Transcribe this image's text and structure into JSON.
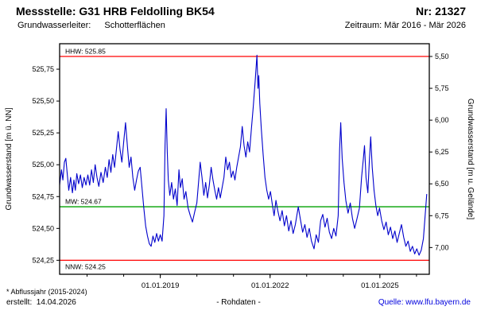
{
  "header": {
    "title": "Messstelle: G31 HRB Feldolling BK54",
    "number": "Nr: 21327",
    "aquifer_label": "Grundwasserleiter:",
    "aquifer_value": "Schotterflächen",
    "period": "Zeitraum: Mär 2016 - Mär 2026"
  },
  "footer": {
    "footnote": "* Abflussjahr (2015-2024)",
    "created": "erstellt:  14.04.2026",
    "center_label": "- Rohdaten -",
    "source_label": "Quelle: ",
    "source_link": "www.lfu.bayern.de"
  },
  "chart_data": {
    "type": "line",
    "ylabel_left": "Grundwasserstand [m ü. NN]",
    "ylabel_right": "Grundwasserstand [m u. Gelände]",
    "xlim": [
      2016.25,
      2026.35
    ],
    "ylim_left": [
      524.14,
      525.95
    ],
    "grid": false,
    "legend": "none",
    "yticks_left": [
      524.25,
      524.5,
      524.75,
      525.0,
      525.25,
      525.5,
      525.75
    ],
    "ytick_labels_left": [
      "524,25",
      "524,50",
      "524,75",
      "525,00",
      "525,25",
      "525,50",
      "525,75"
    ],
    "yticks_right": [
      {
        "label": "5,50",
        "level": 525.85
      },
      {
        "label": "5,75",
        "level": 525.6
      },
      {
        "label": "6,00",
        "level": 525.35
      },
      {
        "label": "6,25",
        "level": 525.1
      },
      {
        "label": "6,50",
        "level": 524.85
      },
      {
        "label": "6,75",
        "level": 524.6
      },
      {
        "label": "7,00",
        "level": 524.35
      }
    ],
    "xticks": [
      2019,
      2022,
      2025
    ],
    "xtick_labels": [
      "01.01.2019",
      "01.01.2022",
      "01.01.2025"
    ],
    "xticks_minor": [
      2017,
      2018,
      2019,
      2020,
      2021,
      2022,
      2023,
      2024,
      2025,
      2026
    ],
    "reference_lines": [
      {
        "name": "hhw",
        "label": "HHW: 525.85",
        "value": 525.85,
        "color": "#ff0000",
        "label_pos": "above"
      },
      {
        "name": "mw",
        "label": "MW: 524.67",
        "value": 524.67,
        "color": "#00a000",
        "label_pos": "above"
      },
      {
        "name": "nnw",
        "label": "NNW: 524.25",
        "value": 524.25,
        "color": "#ff0000",
        "label_pos": "below"
      }
    ],
    "series": [
      {
        "name": "Rohdaten",
        "color": "#0000cc",
        "points": [
          [
            2016.25,
            524.84
          ],
          [
            2016.3,
            524.96
          ],
          [
            2016.34,
            524.88
          ],
          [
            2016.38,
            525.02
          ],
          [
            2016.42,
            525.05
          ],
          [
            2016.46,
            524.92
          ],
          [
            2016.5,
            524.8
          ],
          [
            2016.55,
            524.9
          ],
          [
            2016.6,
            524.78
          ],
          [
            2016.64,
            524.88
          ],
          [
            2016.68,
            524.8
          ],
          [
            2016.72,
            524.93
          ],
          [
            2016.77,
            524.85
          ],
          [
            2016.82,
            524.92
          ],
          [
            2016.87,
            524.82
          ],
          [
            2016.92,
            524.9
          ],
          [
            2016.97,
            524.84
          ],
          [
            2017.02,
            524.92
          ],
          [
            2017.07,
            524.84
          ],
          [
            2017.12,
            524.96
          ],
          [
            2017.17,
            524.86
          ],
          [
            2017.22,
            525.0
          ],
          [
            2017.27,
            524.9
          ],
          [
            2017.32,
            524.83
          ],
          [
            2017.38,
            524.94
          ],
          [
            2017.44,
            524.86
          ],
          [
            2017.5,
            524.98
          ],
          [
            2017.55,
            524.9
          ],
          [
            2017.6,
            525.04
          ],
          [
            2017.65,
            524.94
          ],
          [
            2017.7,
            525.08
          ],
          [
            2017.75,
            524.98
          ],
          [
            2017.8,
            525.12
          ],
          [
            2017.85,
            525.26
          ],
          [
            2017.9,
            525.12
          ],
          [
            2017.95,
            525.02
          ],
          [
            2018.0,
            525.18
          ],
          [
            2018.05,
            525.33
          ],
          [
            2018.1,
            525.15
          ],
          [
            2018.15,
            524.98
          ],
          [
            2018.2,
            525.06
          ],
          [
            2018.25,
            524.9
          ],
          [
            2018.3,
            524.8
          ],
          [
            2018.35,
            524.88
          ],
          [
            2018.4,
            524.95
          ],
          [
            2018.45,
            524.98
          ],
          [
            2018.5,
            524.82
          ],
          [
            2018.55,
            524.66
          ],
          [
            2018.6,
            524.52
          ],
          [
            2018.65,
            524.44
          ],
          [
            2018.7,
            524.38
          ],
          [
            2018.75,
            524.36
          ],
          [
            2018.8,
            524.44
          ],
          [
            2018.85,
            524.39
          ],
          [
            2018.9,
            524.46
          ],
          [
            2018.95,
            524.4
          ],
          [
            2019.0,
            524.45
          ],
          [
            2019.05,
            524.4
          ],
          [
            2019.1,
            524.6
          ],
          [
            2019.13,
            525.15
          ],
          [
            2019.16,
            525.44
          ],
          [
            2019.19,
            525.1
          ],
          [
            2019.22,
            524.88
          ],
          [
            2019.26,
            524.76
          ],
          [
            2019.31,
            524.86
          ],
          [
            2019.36,
            524.73
          ],
          [
            2019.41,
            524.81
          ],
          [
            2019.46,
            524.68
          ],
          [
            2019.51,
            524.96
          ],
          [
            2019.55,
            524.82
          ],
          [
            2019.6,
            524.89
          ],
          [
            2019.65,
            524.73
          ],
          [
            2019.7,
            524.79
          ],
          [
            2019.76,
            524.66
          ],
          [
            2019.82,
            524.6
          ],
          [
            2019.88,
            524.55
          ],
          [
            2019.94,
            524.63
          ],
          [
            2020.0,
            524.7
          ],
          [
            2020.05,
            524.88
          ],
          [
            2020.09,
            525.02
          ],
          [
            2020.14,
            524.9
          ],
          [
            2020.19,
            524.76
          ],
          [
            2020.24,
            524.86
          ],
          [
            2020.29,
            524.74
          ],
          [
            2020.34,
            524.84
          ],
          [
            2020.39,
            524.98
          ],
          [
            2020.44,
            524.88
          ],
          [
            2020.49,
            524.8
          ],
          [
            2020.54,
            524.73
          ],
          [
            2020.59,
            524.82
          ],
          [
            2020.64,
            524.74
          ],
          [
            2020.69,
            524.82
          ],
          [
            2020.74,
            524.9
          ],
          [
            2020.79,
            525.06
          ],
          [
            2020.84,
            524.96
          ],
          [
            2020.89,
            525.02
          ],
          [
            2020.94,
            524.9
          ],
          [
            2020.99,
            524.95
          ],
          [
            2021.04,
            524.88
          ],
          [
            2021.09,
            524.98
          ],
          [
            2021.14,
            525.06
          ],
          [
            2021.19,
            525.14
          ],
          [
            2021.24,
            525.3
          ],
          [
            2021.29,
            525.15
          ],
          [
            2021.34,
            525.06
          ],
          [
            2021.39,
            525.18
          ],
          [
            2021.44,
            525.1
          ],
          [
            2021.49,
            525.28
          ],
          [
            2021.54,
            525.45
          ],
          [
            2021.59,
            525.65
          ],
          [
            2021.64,
            525.86
          ],
          [
            2021.67,
            525.6
          ],
          [
            2021.69,
            525.7
          ],
          [
            2021.72,
            525.48
          ],
          [
            2021.76,
            525.28
          ],
          [
            2021.81,
            525.08
          ],
          [
            2021.86,
            524.9
          ],
          [
            2021.91,
            524.8
          ],
          [
            2021.96,
            524.73
          ],
          [
            2022.01,
            524.79
          ],
          [
            2022.06,
            524.69
          ],
          [
            2022.11,
            524.6
          ],
          [
            2022.16,
            524.72
          ],
          [
            2022.21,
            524.64
          ],
          [
            2022.27,
            524.56
          ],
          [
            2022.33,
            524.64
          ],
          [
            2022.39,
            524.52
          ],
          [
            2022.45,
            524.6
          ],
          [
            2022.51,
            524.48
          ],
          [
            2022.57,
            524.56
          ],
          [
            2022.63,
            524.46
          ],
          [
            2022.69,
            524.53
          ],
          [
            2022.77,
            524.67
          ],
          [
            2022.83,
            524.57
          ],
          [
            2022.89,
            524.47
          ],
          [
            2022.95,
            524.53
          ],
          [
            2023.01,
            524.43
          ],
          [
            2023.07,
            524.5
          ],
          [
            2023.13,
            524.4
          ],
          [
            2023.2,
            524.34
          ],
          [
            2023.26,
            524.45
          ],
          [
            2023.32,
            524.39
          ],
          [
            2023.38,
            524.56
          ],
          [
            2023.44,
            524.61
          ],
          [
            2023.5,
            524.51
          ],
          [
            2023.56,
            524.58
          ],
          [
            2023.62,
            524.47
          ],
          [
            2023.68,
            524.42
          ],
          [
            2023.74,
            524.5
          ],
          [
            2023.8,
            524.44
          ],
          [
            2023.86,
            524.6
          ],
          [
            2023.9,
            525.12
          ],
          [
            2023.93,
            525.33
          ],
          [
            2023.97,
            525.05
          ],
          [
            2024.02,
            524.86
          ],
          [
            2024.07,
            524.72
          ],
          [
            2024.13,
            524.62
          ],
          [
            2024.19,
            524.7
          ],
          [
            2024.25,
            524.58
          ],
          [
            2024.31,
            524.5
          ],
          [
            2024.37,
            524.57
          ],
          [
            2024.44,
            524.66
          ],
          [
            2024.5,
            524.9
          ],
          [
            2024.55,
            525.05
          ],
          [
            2024.58,
            525.15
          ],
          [
            2024.62,
            524.9
          ],
          [
            2024.67,
            524.78
          ],
          [
            2024.71,
            525.02
          ],
          [
            2024.75,
            525.22
          ],
          [
            2024.79,
            524.98
          ],
          [
            2024.84,
            524.8
          ],
          [
            2024.89,
            524.68
          ],
          [
            2024.94,
            524.6
          ],
          [
            2024.99,
            524.66
          ],
          [
            2025.05,
            524.56
          ],
          [
            2025.11,
            524.49
          ],
          [
            2025.17,
            524.55
          ],
          [
            2025.23,
            524.45
          ],
          [
            2025.29,
            524.51
          ],
          [
            2025.35,
            524.42
          ],
          [
            2025.41,
            524.48
          ],
          [
            2025.47,
            524.39
          ],
          [
            2025.53,
            524.46
          ],
          [
            2025.59,
            524.53
          ],
          [
            2025.65,
            524.43
          ],
          [
            2025.71,
            524.36
          ],
          [
            2025.77,
            524.4
          ],
          [
            2025.83,
            524.32
          ],
          [
            2025.89,
            524.36
          ],
          [
            2025.95,
            524.3
          ],
          [
            2026.01,
            524.34
          ],
          [
            2026.07,
            524.29
          ],
          [
            2026.13,
            524.33
          ],
          [
            2026.19,
            524.42
          ],
          [
            2026.28,
            524.77
          ]
        ]
      }
    ]
  }
}
